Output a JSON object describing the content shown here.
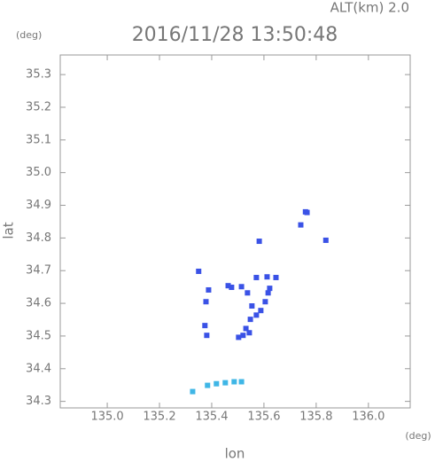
{
  "chart_data": {
    "type": "scatter",
    "title": "2016/11/28 13:50:48",
    "subtitle": "ALT(km) 2.0",
    "y_unit": "(deg)",
    "x_unit": "(deg)",
    "x_label": "lon",
    "y_label": "lat",
    "xlim": [
      134.82,
      136.16
    ],
    "ylim": [
      34.28,
      35.36
    ],
    "xticks": [
      {
        "value": 135.0,
        "label": "135.0"
      },
      135.2,
      135.4,
      135.6,
      135.8,
      {
        "value": 136.0,
        "label": "136.0"
      }
    ],
    "yticks": [
      34.3,
      34.4,
      34.5,
      34.6,
      34.7,
      34.8,
      34.9,
      {
        "value": 35.0,
        "label": "35.0"
      },
      35.1,
      35.2,
      35.3
    ],
    "series": [
      {
        "color": "#3a52e6",
        "x": [
          135.759,
          135.765,
          135.741,
          135.837,
          135.582,
          135.35,
          135.463,
          135.476,
          135.388,
          135.571,
          135.612,
          135.646,
          135.622,
          135.616,
          135.605,
          135.588,
          135.514,
          135.537,
          135.554,
          135.571,
          135.548,
          135.531,
          135.544,
          135.52,
          135.503,
          135.378,
          135.374,
          135.381
        ],
        "values": [
          34.88,
          34.878,
          34.84,
          34.793,
          34.79,
          34.698,
          34.654,
          34.649,
          34.641,
          34.679,
          34.681,
          34.679,
          34.646,
          34.632,
          34.605,
          34.578,
          34.651,
          34.632,
          34.592,
          34.564,
          34.551,
          34.523,
          34.51,
          34.502,
          34.496,
          34.605,
          34.532,
          34.502
        ]
      },
      {
        "color": "#3fb6e6",
        "x": [
          135.327,
          135.384,
          135.418,
          135.452,
          135.486,
          135.514
        ],
        "values": [
          34.33,
          34.349,
          34.354,
          34.357,
          34.36,
          34.36
        ]
      }
    ]
  }
}
